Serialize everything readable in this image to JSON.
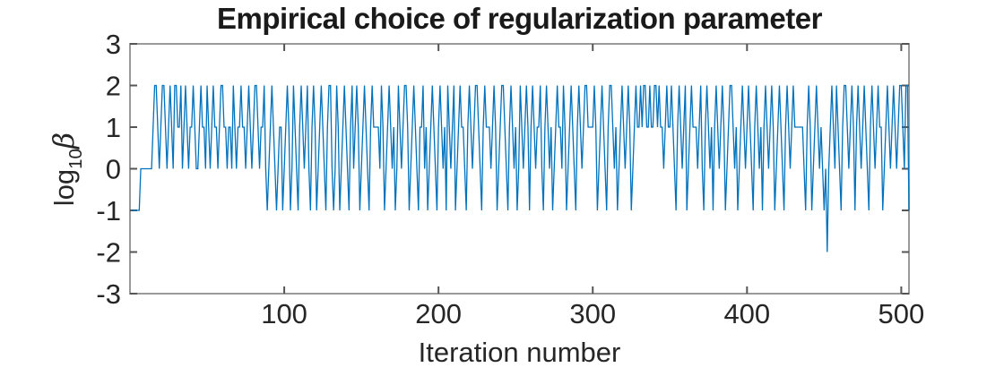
{
  "chart_data": {
    "type": "line",
    "title": "Empirical choice of regularization parameter",
    "xlabel": "Iteration number",
    "ylabel_base": "log",
    "ylabel_sub": "10",
    "ylabel_var": "β",
    "xlim": [
      0,
      505
    ],
    "ylim": [
      -3,
      3
    ],
    "xticks": [
      100,
      200,
      300,
      400,
      500
    ],
    "yticks": [
      3,
      2,
      1,
      0,
      -1,
      -2,
      -3
    ],
    "grid": false,
    "legend": "none",
    "line_color": "#0072BD",
    "axis_color": "#9a9a9a",
    "tick_color": "#555555",
    "label_color": "#262626",
    "x_start": 1,
    "values": [
      -1,
      -1,
      -1,
      -1,
      -1,
      -1,
      0,
      0,
      0,
      0,
      0,
      0,
      0,
      0,
      1,
      2,
      2,
      1,
      0,
      1,
      2,
      2,
      1,
      0,
      1,
      2,
      1,
      0,
      2,
      2,
      1,
      1,
      2,
      0,
      1,
      2,
      1,
      0,
      1,
      1,
      2,
      1,
      0,
      0,
      1,
      2,
      1,
      1,
      0,
      2,
      1,
      0,
      1,
      2,
      1,
      1,
      0,
      1,
      2,
      2,
      1,
      1,
      0,
      1,
      1,
      0,
      2,
      1,
      0,
      1,
      1,
      2,
      1,
      1,
      0,
      1,
      2,
      1,
      0,
      1,
      2,
      2,
      1,
      0,
      1,
      1,
      2,
      0,
      -1,
      0,
      1,
      2,
      1,
      0,
      -1,
      0,
      1,
      1,
      -1,
      0,
      1,
      2,
      1,
      -1,
      0,
      2,
      1,
      0,
      -1,
      1,
      2,
      1,
      0,
      1,
      2,
      0,
      -1,
      1,
      2,
      1,
      -1,
      0,
      1,
      2,
      1,
      0,
      -1,
      1,
      2,
      2,
      0,
      -1,
      0,
      2,
      1,
      -1,
      0,
      1,
      2,
      1,
      0,
      -1,
      1,
      2,
      0,
      1,
      2,
      1,
      -1,
      0,
      1,
      2,
      1,
      0,
      -1,
      1,
      2,
      1,
      1,
      1,
      1,
      0,
      2,
      1,
      -1,
      0,
      1,
      2,
      1,
      0,
      1,
      -1,
      0,
      2,
      1,
      0,
      1,
      2,
      2,
      1,
      -1,
      0,
      1,
      2,
      1,
      0,
      -1,
      1,
      1,
      2,
      0,
      1,
      -1,
      0,
      1,
      2,
      1,
      0,
      -1,
      1,
      2,
      1,
      0,
      1,
      -1,
      2,
      1,
      0,
      1,
      2,
      -1,
      0,
      1,
      2,
      1,
      1,
      0,
      -1,
      1,
      2,
      1,
      0,
      1,
      2,
      2,
      1,
      0,
      -1,
      1,
      2,
      1,
      1,
      1,
      0,
      1,
      2,
      1,
      -1,
      0,
      1,
      2,
      2,
      1,
      0,
      -1,
      1,
      2,
      1,
      0,
      1,
      -1,
      0,
      2,
      1,
      0,
      1,
      2,
      1,
      -1,
      1,
      2,
      1,
      0,
      1,
      1,
      2,
      0,
      -1,
      1,
      2,
      1,
      0,
      1,
      -1,
      0,
      1,
      2,
      1,
      1,
      0,
      2,
      1,
      -1,
      0,
      1,
      2,
      1,
      0,
      -1,
      1,
      2,
      1,
      0,
      1,
      2,
      2,
      1,
      1,
      1,
      1,
      2,
      1,
      -1,
      0,
      1,
      2,
      1,
      0,
      -1,
      1,
      2,
      2,
      1,
      0,
      1,
      -1,
      0,
      1,
      2,
      1,
      0,
      1,
      2,
      1,
      -1,
      0,
      1,
      2,
      1,
      1,
      2,
      1,
      2,
      2,
      1,
      1,
      2,
      1,
      1,
      2,
      2,
      1,
      2,
      1,
      1,
      0,
      1,
      2,
      1,
      1,
      2,
      1,
      0,
      -1,
      1,
      2,
      1,
      0,
      1,
      2,
      -1,
      0,
      1,
      2,
      1,
      1,
      1,
      0,
      1,
      2,
      0,
      -1,
      1,
      2,
      1,
      0,
      1,
      -1,
      1,
      2,
      1,
      0,
      1,
      2,
      1,
      -1,
      0,
      1,
      2,
      2,
      1,
      0,
      1,
      -1,
      0,
      1,
      2,
      1,
      0,
      1,
      2,
      1,
      0,
      -1,
      1,
      2,
      1,
      0,
      1,
      -1,
      1,
      2,
      1,
      0,
      1,
      2,
      1,
      -1,
      0,
      1,
      2,
      1,
      0,
      -1,
      1,
      2,
      1,
      0,
      1,
      2,
      1,
      1,
      1,
      1,
      1,
      1,
      0,
      -1,
      1,
      2,
      1,
      -1,
      0,
      1,
      2,
      1,
      0,
      1,
      0,
      -1,
      0,
      -2,
      0,
      1,
      2,
      1,
      0,
      2,
      1,
      0,
      -1,
      1,
      2,
      2,
      1,
      0,
      1,
      2,
      1,
      -1,
      1,
      2,
      1,
      0,
      1,
      2,
      1,
      0,
      -1,
      1,
      2,
      1,
      0,
      1,
      2,
      1,
      1,
      -1,
      0,
      1,
      2,
      1,
      0,
      1,
      2,
      1,
      0,
      1,
      2,
      2,
      1,
      0,
      2,
      2,
      -1
    ]
  }
}
